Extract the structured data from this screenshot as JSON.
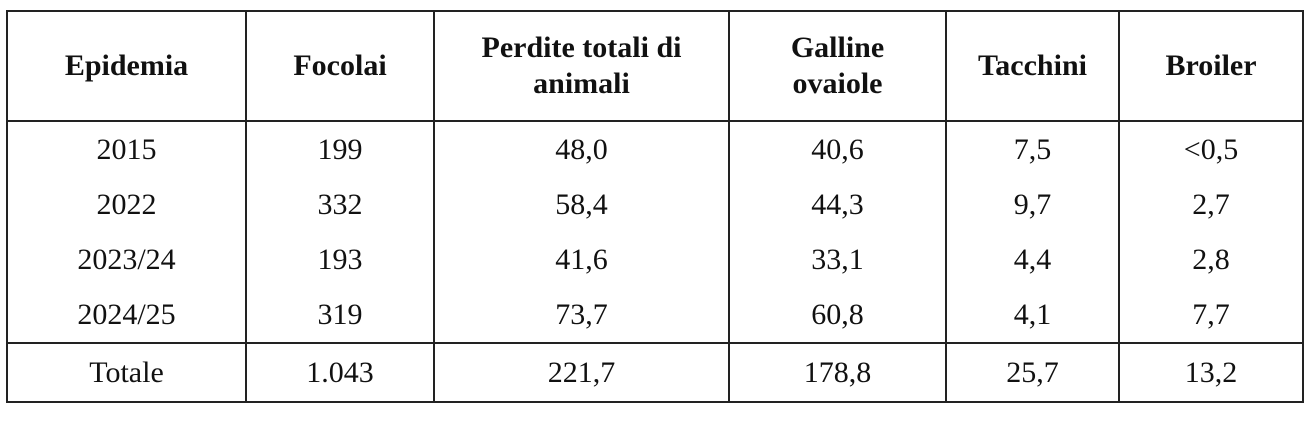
{
  "table": {
    "header": [
      "Epidemia",
      "Focolai",
      "Perdite totali di animali",
      "Galline ovaiole",
      "Tacchini",
      "Broiler"
    ],
    "rows": [
      [
        "2015",
        "199",
        "48,0",
        "40,6",
        "7,5",
        "<0,5"
      ],
      [
        "2022",
        "332",
        "58,4",
        "44,3",
        "9,7",
        "2,7"
      ],
      [
        "2023/24",
        "193",
        "41,6",
        "33,1",
        "4,4",
        "2,8"
      ],
      [
        "2024/25",
        "319",
        "73,7",
        "60,8",
        "4,1",
        "7,7"
      ]
    ],
    "total": [
      "Totale",
      "1.043",
      "221,7",
      "178,8",
      "25,7",
      "13,2"
    ]
  }
}
